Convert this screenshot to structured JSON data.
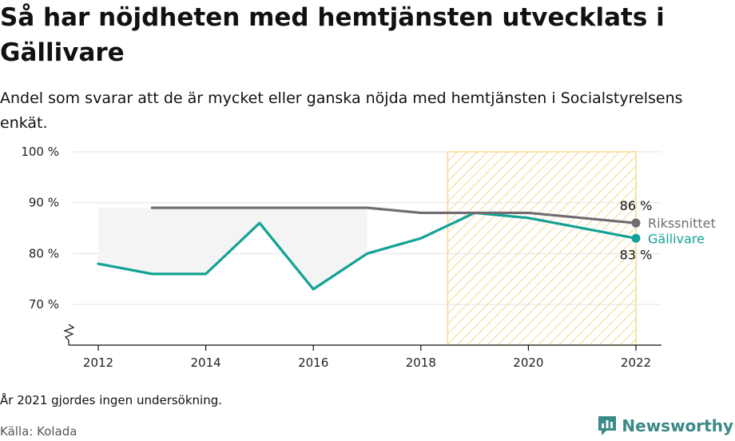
{
  "title": "Så har nöjdheten med hemtjänsten utvecklats i Gällivare",
  "subtitle": "Andel som svarar att de är mycket eller ganska nöjda med hemtjänsten i Socialstyrelsens enkät.",
  "note": "År 2021 gjordes ingen undersökning.",
  "source": "Källa: Kolada",
  "brand": "Newsworthy",
  "colors": {
    "gallivare": "#13a295",
    "riksnittet": "#706c72",
    "highlight_stroke": "#f5cf73",
    "fill_between": "#f4f4f4",
    "brand": "#3a8a87"
  },
  "chart_data": {
    "type": "line",
    "x": [
      2012,
      2013,
      2014,
      2015,
      2016,
      2017,
      2018,
      2019,
      2020,
      2022
    ],
    "series": [
      {
        "name": "Gällivare",
        "x": [
          2012,
          2013,
          2014,
          2015,
          2016,
          2017,
          2018,
          2019,
          2020,
          2022
        ],
        "values": [
          78,
          76,
          76,
          86,
          73,
          80,
          83,
          88,
          87,
          83
        ],
        "end_label": "83 %"
      },
      {
        "name": "Rikssnittet",
        "x": [
          2013,
          2014,
          2015,
          2016,
          2017,
          2018,
          2019,
          2020,
          2022
        ],
        "values": [
          89,
          89,
          89,
          89,
          89,
          88,
          88,
          88,
          86
        ],
        "end_label": "86 %"
      }
    ],
    "x_ticks": [
      "2012",
      "2014",
      "2016",
      "2018",
      "2020",
      "2022"
    ],
    "y_ticks": [
      "100 %",
      "90 %",
      "80 %",
      "70 %"
    ],
    "y_tick_values": [
      100,
      90,
      80,
      70
    ],
    "ylim": [
      62,
      100
    ],
    "xlim": [
      2011.5,
      2022.5
    ],
    "highlight_range": [
      2018.5,
      2022
    ],
    "axis_break": true,
    "grid": true
  }
}
